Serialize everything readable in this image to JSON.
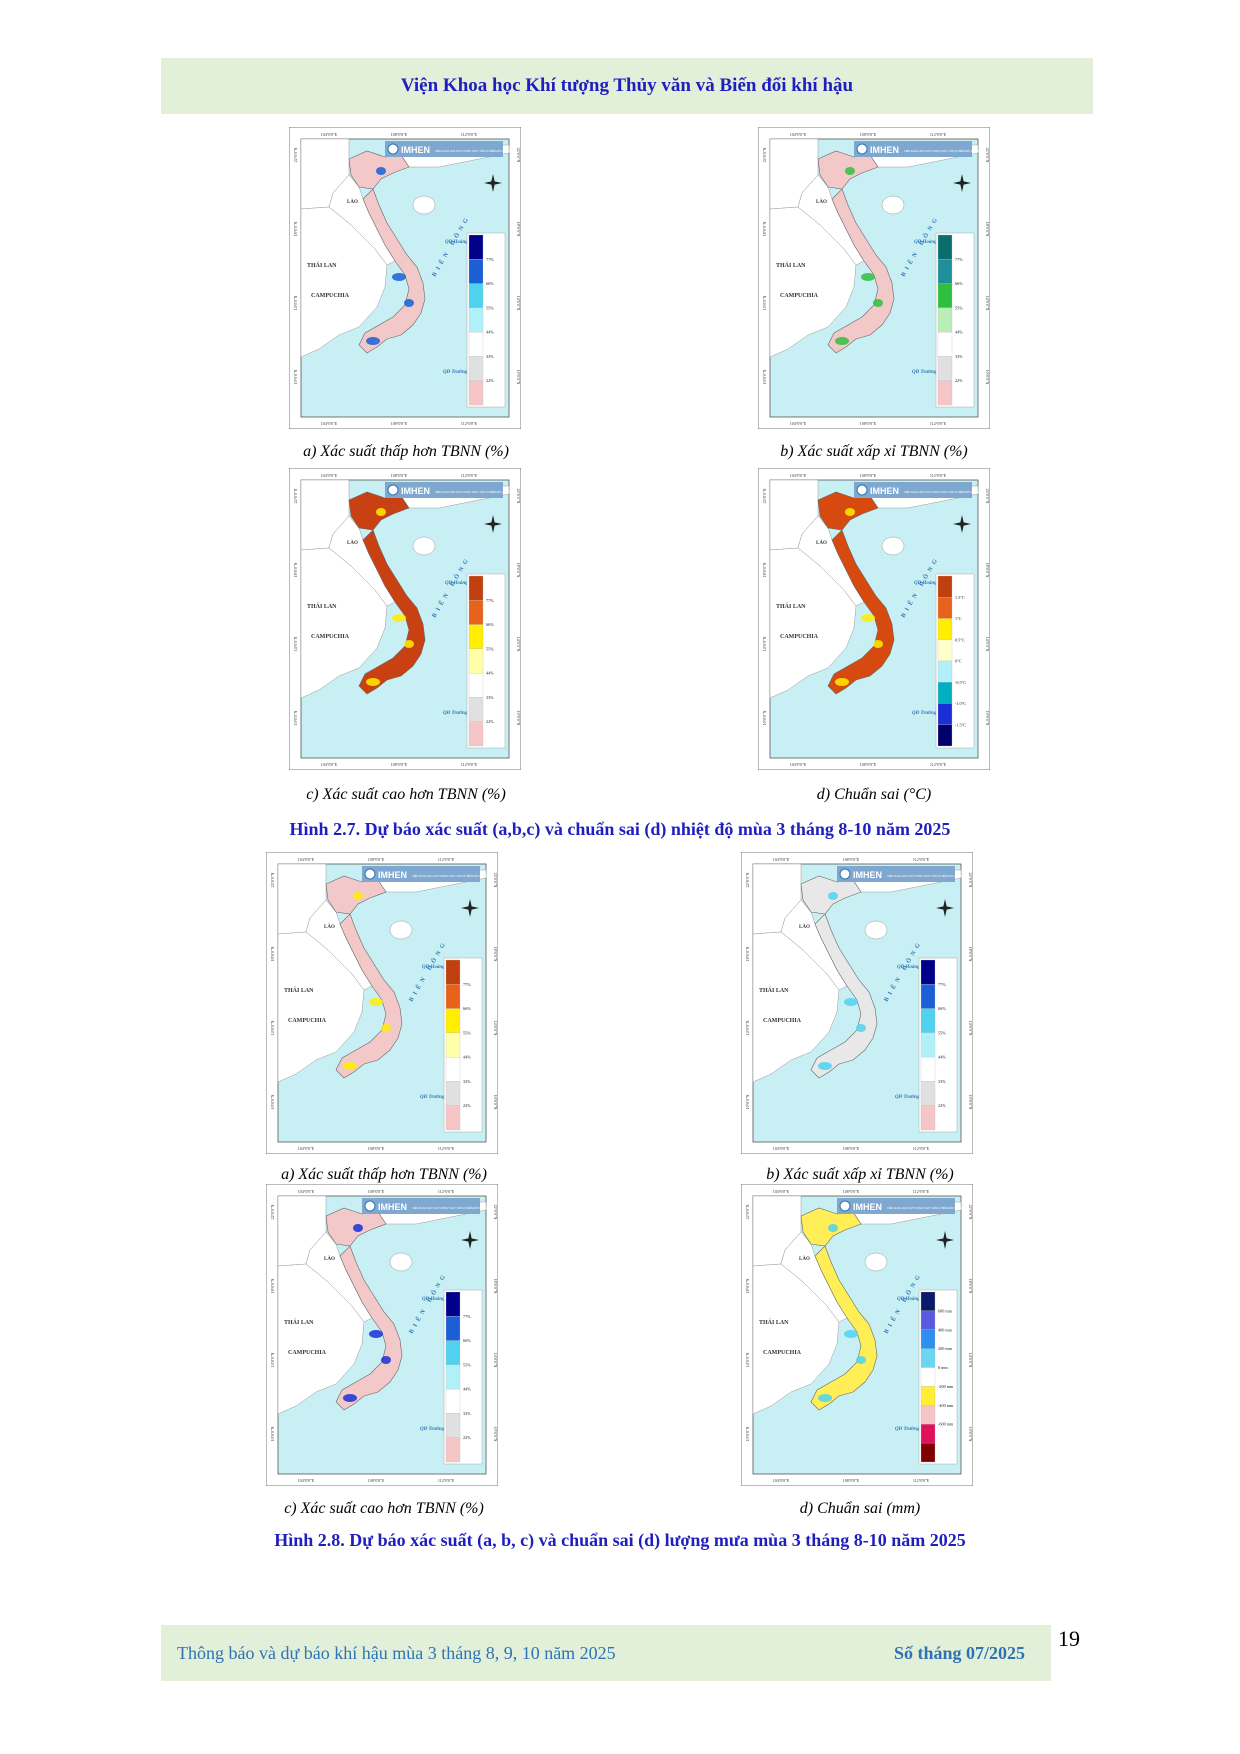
{
  "header": {
    "title": "Viện Khoa học Khí tượng Thủy văn và Biến đổi khí hậu"
  },
  "map_labels": {
    "logo": "IMHEN",
    "logo_sub": "VIỆN KHOA HỌC KHÍ TƯỢNG THỦY VĂN VÀ BIẾN ĐỔI KHÍ HẬU",
    "lon_ticks": [
      "104°0'0\"E",
      "108°0'0\"E",
      "112°0'0\"E"
    ],
    "lat_ticks": [
      "22°0'0\"N",
      "18°0'0\"N",
      "14°0'0\"N",
      "10°0'0\"N"
    ],
    "thailand": "THÁI LAN",
    "cambodia": "CAMPUCHIA",
    "laos": "LÀO",
    "east_sea": "BIỂN ĐÔNG",
    "paracel": "QĐ Hoàng Sa",
    "spratly": "QĐ Trường Sa"
  },
  "legends": {
    "prob_below": {
      "colors": [
        "#00008b",
        "#1a5fd6",
        "#4fd2f0",
        "#b0f0f8",
        "#ffffff",
        "#e0e0e0",
        "#f6c6c6"
      ],
      "labels": [
        "77%",
        "66%",
        "55%",
        "44%",
        "33%",
        "22%"
      ]
    },
    "prob_normal": {
      "colors": [
        "#0b6e6e",
        "#1f8f99",
        "#2fbf3f",
        "#b7efb7",
        "#ffffff",
        "#e0e0e0",
        "#f6c6c6"
      ],
      "labels": [
        "77%",
        "66%",
        "55%",
        "44%",
        "33%",
        "22%"
      ]
    },
    "prob_above": {
      "colors": [
        "#c0400f",
        "#e9621b",
        "#ffee00",
        "#ffffa8",
        "#ffffff",
        "#e0e0e0",
        "#f6c6c6"
      ],
      "labels": [
        "77%",
        "66%",
        "55%",
        "44%",
        "33%",
        "22%"
      ]
    },
    "temp_anom": {
      "colors": [
        "#c0400f",
        "#e9621b",
        "#ffee00",
        "#ffffcc",
        "#b0f0f8",
        "#00b0c0",
        "#1a2fd6",
        "#00006b"
      ],
      "labels": [
        "1.5°C",
        "1°C",
        "0.5°C",
        "0°C",
        "-0.5°C",
        "-1.0°C",
        "-1.5°C"
      ]
    },
    "rain_prob_above": {
      "colors": [
        "#00008b",
        "#1a5fd6",
        "#4fd2f0",
        "#b0f0f8",
        "#ffffff",
        "#e0e0e0",
        "#f6c6c6"
      ],
      "labels": [
        "77%",
        "66%",
        "55%",
        "44%",
        "33%",
        "22%"
      ]
    },
    "rain_anom": {
      "colors": [
        "#0b1b6b",
        "#5a5ae0",
        "#2f8ff0",
        "#6ad6f2",
        "#ffffff",
        "#ffee33",
        "#f6c6c6",
        "#e0105a",
        "#800000"
      ],
      "labels": [
        "600 mm",
        "400 mm",
        "200 mm",
        "0 mm",
        "-200 mm",
        "-400 mm",
        "-600 mm"
      ]
    }
  },
  "figure_27": {
    "captions": [
      "a) Xác suất thấp hơn TBNN (%)",
      "b) Xác suất xấp xỉ TBNN (%)",
      "c) Xác suất cao hơn TBNN (%)",
      "d) Chuẩn sai (°C)"
    ],
    "title": "Hình 2.7. Dự báo xác suất (a,b,c) và chuẩn sai (d) nhiệt độ mùa 3 tháng 8-10 năm 2025",
    "maps": [
      {
        "land": "#f2c8c8",
        "accent": "#1a5fd6"
      },
      {
        "land": "#f2c8c8",
        "accent": "#2fbf3f"
      },
      {
        "land": "#c94012",
        "accent": "#ffee00"
      },
      {
        "land": "#d64a10",
        "accent": "#ffee00"
      }
    ]
  },
  "figure_28": {
    "captions": [
      "a) Xác suất thấp hơn TBNN (%)",
      "b) Xác suất xấp xỉ TBNN (%)",
      "c) Xác suất cao hơn TBNN (%)",
      "d) Chuẩn sai (mm)"
    ],
    "title": "Hình 2.8. Dự báo xác suất (a, b, c) và chuẩn sai (d) lượng mưa mùa 3 tháng 8-10 năm 2025",
    "maps": [
      {
        "land": "#f2c8c8",
        "accent": "#ffee00"
      },
      {
        "land": "#e8e8e8",
        "accent": "#4fd2f0"
      },
      {
        "land": "#f2c8c8",
        "accent": "#1a2fd6"
      },
      {
        "land": "#ffee55",
        "accent": "#4fd2f0"
      }
    ]
  },
  "footer": {
    "left": "Thông báo và dự báo khí hậu mùa 3 tháng 8, 9, 10 năm 2025",
    "right": "Số tháng 07/2025"
  },
  "page_number": "19"
}
